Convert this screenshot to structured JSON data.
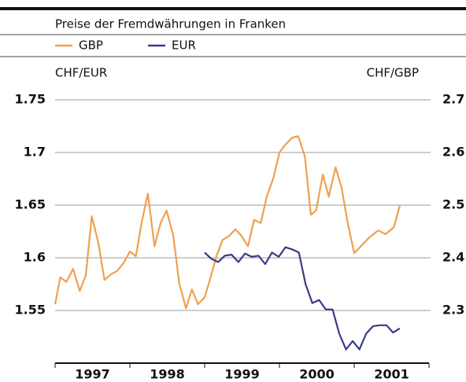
{
  "chart_data": {
    "type": "line",
    "title": "Preise der Fremdwährungen in Franken",
    "y_label": "CHF/EUR",
    "y2_label": "CHF/GBP",
    "categories": [
      "1997",
      "1998",
      "1999",
      "2000",
      "2001"
    ],
    "xlim": [
      1997,
      2002
    ],
    "xticks": [
      1997,
      1998,
      1999,
      2000,
      2001,
      2002
    ],
    "ylim": [
      1.5,
      1.75
    ],
    "yticks": [
      1.55,
      {
        "value": 1.6,
        "label": "1.6"
      },
      1.65,
      {
        "value": 1.7,
        "label": "1.7"
      },
      1.75
    ],
    "y2lim": [
      2.2,
      2.7
    ],
    "y2ticks": [
      2.3,
      2.4,
      2.5,
      2.6,
      2.7
    ],
    "grid": true,
    "series": [
      {
        "name": "GBP",
        "color": "#f0a050",
        "axis": "y2",
        "x": [
          1997.0,
          1997.07,
          1997.15,
          1997.24,
          1997.33,
          1997.41,
          1997.49,
          1997.58,
          1997.66,
          1997.75,
          1997.83,
          1997.92,
          1998.0,
          1998.08,
          1998.16,
          1998.24,
          1998.33,
          1998.41,
          1998.49,
          1998.58,
          1998.66,
          1998.75,
          1998.83,
          1998.91,
          1999.0,
          1999.07,
          1999.16,
          1999.24,
          1999.33,
          1999.41,
          1999.49,
          1999.58,
          1999.66,
          1999.75,
          1999.83,
          1999.92,
          2000.0,
          2000.08,
          2000.17,
          2000.25,
          2000.34,
          2000.42,
          2000.49,
          2000.58,
          2000.66,
          2000.75,
          2000.83,
          2000.92,
          2001.0,
          2001.11,
          2001.21,
          2001.32,
          2001.42,
          2001.53,
          2001.61
        ],
        "values": [
          2.312,
          2.363,
          2.354,
          2.379,
          2.337,
          2.367,
          2.479,
          2.427,
          2.358,
          2.369,
          2.375,
          2.391,
          2.412,
          2.403,
          2.469,
          2.522,
          2.422,
          2.466,
          2.49,
          2.442,
          2.352,
          2.304,
          2.34,
          2.312,
          2.325,
          2.358,
          2.404,
          2.434,
          2.442,
          2.454,
          2.442,
          2.422,
          2.472,
          2.466,
          2.516,
          2.552,
          2.6,
          2.615,
          2.628,
          2.631,
          2.593,
          2.482,
          2.49,
          2.558,
          2.516,
          2.572,
          2.534,
          2.461,
          2.409,
          2.425,
          2.44,
          2.452,
          2.445,
          2.458,
          2.499
        ]
      },
      {
        "name": "EUR",
        "color": "#3a3a8c",
        "axis": "y",
        "x": [
          1999.0,
          1999.09,
          1999.18,
          1999.27,
          1999.36,
          1999.45,
          1999.54,
          1999.63,
          1999.72,
          1999.81,
          1999.9,
          1999.99,
          2000.08,
          2000.17,
          2000.26,
          2000.35,
          2000.44,
          2000.53,
          2000.62,
          2000.71,
          2000.8,
          2000.89,
          2000.98,
          2001.07,
          2001.16,
          2001.25,
          2001.34,
          2001.43,
          2001.52,
          2001.61
        ],
        "values": [
          1.605,
          1.599,
          1.596,
          1.602,
          1.603,
          1.596,
          1.604,
          1.601,
          1.602,
          1.594,
          1.605,
          1.601,
          1.61,
          1.608,
          1.605,
          1.575,
          1.557,
          1.56,
          1.551,
          1.551,
          1.528,
          1.513,
          1.521,
          1.513,
          1.528,
          1.535,
          1.536,
          1.536,
          1.529,
          1.533
        ]
      }
    ]
  }
}
